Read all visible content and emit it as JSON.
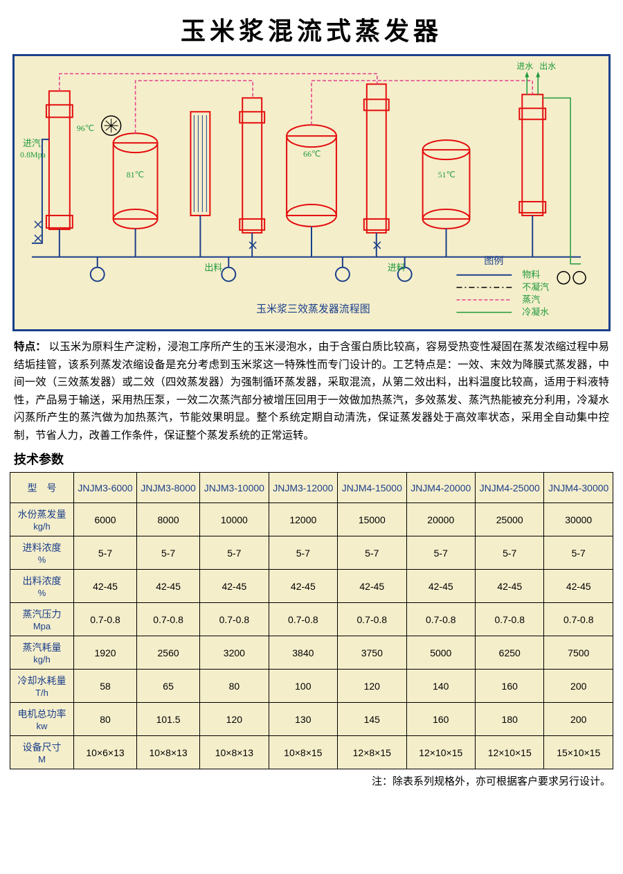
{
  "title": "玉米浆混流式蒸发器",
  "diagram": {
    "bg": "#f5eecb",
    "border": "#1a3f8a",
    "caption": "玉米浆三效蒸发器流程图",
    "caption_color": "#1a3f8a",
    "legend_title": "图例",
    "legend": [
      {
        "label": "物料",
        "color": "#1a3f8a",
        "dash": "",
        "text_color": "#1f9a3c"
      },
      {
        "label": "不凝汽",
        "color": "#000000",
        "dash": "8 4 2 4",
        "text_color": "#1f9a3c"
      },
      {
        "label": "蒸汽",
        "color": "#e23b8a",
        "dash": "5 3",
        "text_color": "#1f9a3c"
      },
      {
        "label": "冷凝水",
        "color": "#1f9a3c",
        "dash": "",
        "text_color": "#1f9a3c"
      }
    ],
    "annotations": {
      "inlet_steam": "进汽",
      "inlet_steam_sub": "0.8Mpa",
      "t96": "96℃",
      "t81": "81℃",
      "t66": "66℃",
      "t51": "51℃",
      "outlet": "出料",
      "inlet_feed": "进料",
      "water_in": "进水",
      "water_out": "出水"
    },
    "colors": {
      "vessel": "#e40c0c",
      "pipe_material": "#1a3f8a",
      "pipe_steam": "#e23b8a",
      "pipe_cond": "#1f9a3c",
      "pipe_noncon": "#000000",
      "text_green": "#1f9a3c",
      "text_blue": "#1a3f8a"
    }
  },
  "features": {
    "label": "特点：",
    "body": "以玉米为原料生产淀粉，浸泡工序所产生的玉米浸泡水，由于含蛋白质比较高，容易受热变性凝固在蒸发浓缩过程中易结垢挂管，该系列蒸发浓缩设备是充分考虑到玉米浆这一特殊性而专门设计的。工艺特点是：一效、末效为降膜式蒸发器，中间一效（三效蒸发器）或二效（四效蒸发器）为强制循环蒸发器，采取混流，从第二效出料，出料温度比较高，适用于料液特性，产品易于输送，采用热压泵，一效二次蒸汽部分被增压回用于一效做加热蒸汽，多效蒸发、蒸汽热能被充分利用，冷凝水闪蒸所产生的蒸汽做为加热蒸汽，节能效果明显。整个系统定期自动清洗，保证蒸发器处于高效率状态，采用全自动集中控制，节省人力，改善工作条件，保证整个蒸发系统的正常运转。"
  },
  "params_heading": "技术参数",
  "table": {
    "model_label": "型　号",
    "columns": [
      "JNJM3-6000",
      "JNJM3-8000",
      "JNJM3-10000",
      "JNJM3-12000",
      "JNJM4-15000",
      "JNJM4-20000",
      "JNJM4-25000",
      "JNJM4-30000"
    ],
    "rows": [
      {
        "label1": "水份蒸发量",
        "label2": "kg/h",
        "cells": [
          "6000",
          "8000",
          "10000",
          "12000",
          "15000",
          "20000",
          "25000",
          "30000"
        ]
      },
      {
        "label1": "进料浓度",
        "label2": "%",
        "cells": [
          "5-7",
          "5-7",
          "5-7",
          "5-7",
          "5-7",
          "5-7",
          "5-7",
          "5-7"
        ]
      },
      {
        "label1": "出料浓度",
        "label2": "%",
        "cells": [
          "42-45",
          "42-45",
          "42-45",
          "42-45",
          "42-45",
          "42-45",
          "42-45",
          "42-45"
        ]
      },
      {
        "label1": "蒸汽压力",
        "label2": "Mpa",
        "cells": [
          "0.7-0.8",
          "0.7-0.8",
          "0.7-0.8",
          "0.7-0.8",
          "0.7-0.8",
          "0.7-0.8",
          "0.7-0.8",
          "0.7-0.8"
        ]
      },
      {
        "label1": "蒸汽耗量",
        "label2": "kg/h",
        "cells": [
          "1920",
          "2560",
          "3200",
          "3840",
          "3750",
          "5000",
          "6250",
          "7500"
        ]
      },
      {
        "label1": "冷却水耗量",
        "label2": "T/h",
        "cells": [
          "58",
          "65",
          "80",
          "100",
          "120",
          "140",
          "160",
          "200"
        ]
      },
      {
        "label1": "电机总功率",
        "label2": "kw",
        "cells": [
          "80",
          "101.5",
          "120",
          "130",
          "145",
          "160",
          "180",
          "200"
        ]
      },
      {
        "label1": "设备尺寸",
        "label2": "M",
        "cells": [
          "10×6×13",
          "10×8×13",
          "10×8×13",
          "10×8×15",
          "12×8×15",
          "12×10×15",
          "12×10×15",
          "15×10×15"
        ]
      }
    ]
  },
  "footnote": "注：除表系列规格外，亦可根据客户要求另行设计。"
}
